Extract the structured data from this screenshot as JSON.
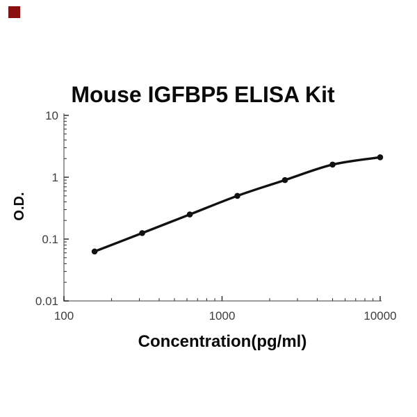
{
  "badge": {
    "name": "corner-color-swatch",
    "color": "#8a0f0f"
  },
  "chart_data": {
    "type": "line",
    "title": "Mouse IGFBP5 ELISA Kit",
    "xlabel": "Concentration(pg/ml)",
    "ylabel": "O.D.",
    "x_scale": "log",
    "y_scale": "log",
    "xlim": [
      100,
      10000
    ],
    "ylim": [
      0.01,
      10
    ],
    "x_ticks": [
      {
        "value": 100,
        "label": "100"
      },
      {
        "value": 1000,
        "label": "1000"
      },
      {
        "value": 10000,
        "label": "10000"
      }
    ],
    "y_ticks": [
      {
        "value": 10,
        "label": "10"
      },
      {
        "value": 1,
        "label": "1"
      },
      {
        "value": 0.1,
        "label": "0.1"
      },
      {
        "value": 0.01,
        "label": "0.01"
      }
    ],
    "series": [
      {
        "name": "standard-curve",
        "marker": "filled-circle",
        "points": [
          {
            "x": 156.25,
            "y": 0.063
          },
          {
            "x": 312.5,
            "y": 0.125
          },
          {
            "x": 625,
            "y": 0.25
          },
          {
            "x": 1250,
            "y": 0.5
          },
          {
            "x": 2500,
            "y": 0.9
          },
          {
            "x": 5000,
            "y": 1.6
          },
          {
            "x": 10000,
            "y": 2.1
          }
        ]
      }
    ],
    "grid": false,
    "legend": "none",
    "colors": {
      "curve": "#111111",
      "marker": "#111111",
      "axis_line": "#9c9c9c",
      "tick_mark": "#3a3a3a",
      "tick_label": "#3d3d3d",
      "text": "#0a0a0a",
      "background": "#ffffff"
    }
  }
}
